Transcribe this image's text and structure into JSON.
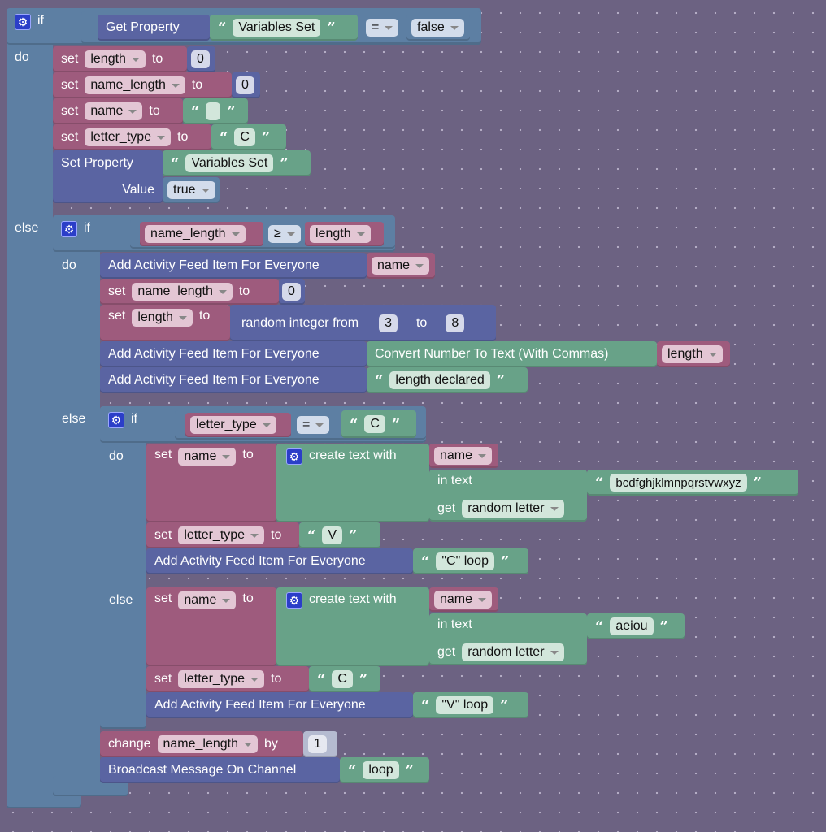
{
  "kw": {
    "if": "if",
    "do": "do",
    "else": "else",
    "set": "set",
    "to": "to",
    "value": "Value",
    "by": "by",
    "change": "change",
    "in_text": "in text",
    "get": "get",
    "quote_open": "“",
    "quote_close": "”",
    "dropdown": "▾"
  },
  "outer_if": {
    "get_property": "Get Property",
    "prop": "Variables Set",
    "op": "=",
    "compare_value": "false"
  },
  "outer_do": [
    {
      "var": "length",
      "value": "0"
    },
    {
      "var": "name_length",
      "value": "0"
    },
    {
      "var": "name",
      "value": ""
    },
    {
      "var": "letter_type",
      "value": "C"
    }
  ],
  "set_property": {
    "label": "Set Property",
    "prop": "Variables Set",
    "value": "true"
  },
  "if2": {
    "left": "name_length",
    "op": "≥",
    "right": "length"
  },
  "if2_do": {
    "feed_label": "Add Activity Feed Item For Everyone",
    "feed1_var": "name",
    "set1": {
      "var": "name_length",
      "value": "0"
    },
    "set2": {
      "var": "length",
      "random_label": "random integer from",
      "from": "3",
      "to": "8"
    },
    "convert_label": "Convert Number To Text (With Commas)",
    "convert_var": "length",
    "feed3_text": "length declared"
  },
  "if3": {
    "left": "letter_type",
    "op": "=",
    "right": "C"
  },
  "if3_do": {
    "var": "name",
    "create_label": "create text with",
    "item": "name",
    "letters": "bcdfghjklmnpqrstvwxyz",
    "get_mode": "random letter",
    "set2_var": "letter_type",
    "set2_val": "V",
    "feed_text": "\"C\" loop"
  },
  "if3_else": {
    "var": "name",
    "create_label": "create text with",
    "item": "name",
    "letters": "aeiou",
    "get_mode": "random letter",
    "set2_var": "letter_type",
    "set2_val": "C",
    "feed_text": "\"V\" loop"
  },
  "change": {
    "var": "name_length",
    "by": "1"
  },
  "broadcast": {
    "label": "Broadcast Message On Channel",
    "text": "loop"
  }
}
